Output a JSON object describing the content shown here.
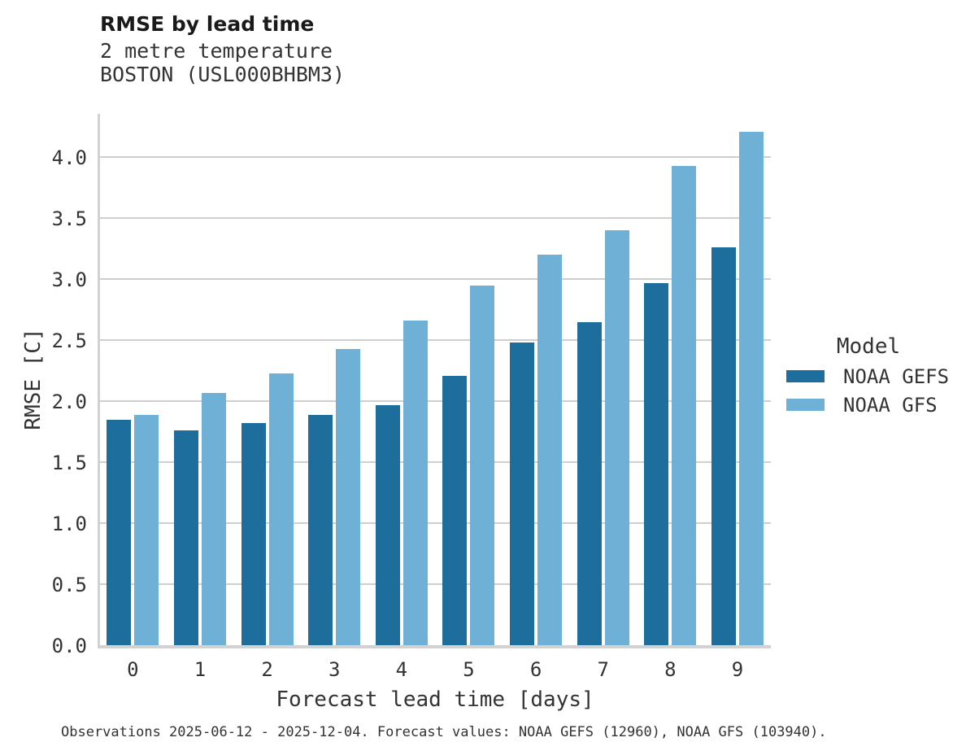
{
  "caption": "Observations 2025-06-12 - 2025-12-04. Forecast values: NOAA GEFS (12960), NOAA GFS (103940).",
  "legend": {
    "title": "Model",
    "position": "right"
  },
  "colors": {
    "gefs_bar": "#1e6e9d",
    "gfs_bar": "#6fb0d7",
    "gridline": "#cfcfcf",
    "spine": "#d2d2d2",
    "title_text": "#1a1a1a",
    "body_text": "#333333"
  },
  "chart_data": {
    "type": "bar",
    "title": "RMSE by lead time",
    "subtitle": [
      "2 metre temperature",
      "BOSTON (USL000BHBM3)"
    ],
    "xlabel": "Forecast lead time [days]",
    "ylabel": "RMSE [C]",
    "categories": [
      0,
      1,
      2,
      3,
      4,
      5,
      6,
      7,
      8,
      9
    ],
    "series": [
      {
        "name": "NOAA GEFS",
        "color": "#1e6e9d",
        "values": [
          1.85,
          1.76,
          1.82,
          1.89,
          1.97,
          2.21,
          2.48,
          2.65,
          2.97,
          3.26
        ]
      },
      {
        "name": "NOAA GFS",
        "color": "#6fb0d7",
        "values": [
          1.89,
          2.07,
          2.23,
          2.43,
          2.66,
          2.95,
          3.2,
          3.4,
          3.93,
          4.21
        ]
      }
    ],
    "ylim": [
      0,
      4.35
    ],
    "yticks": [
      0.0,
      0.5,
      1.0,
      1.5,
      2.0,
      2.5,
      3.0,
      3.5,
      4.0
    ],
    "grid": true,
    "legend_position": "right"
  }
}
